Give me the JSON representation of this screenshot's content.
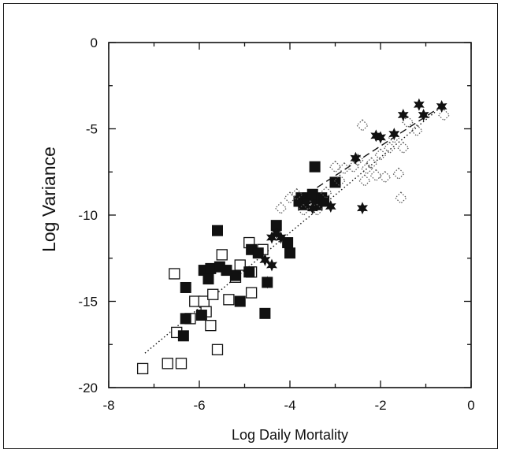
{
  "chart_data": {
    "type": "scatter",
    "xlabel": "Log Daily Mortality",
    "ylabel": "Log Variance",
    "xlim": [
      -8,
      0
    ],
    "ylim": [
      -20,
      0
    ],
    "x_ticks": [
      -8,
      -6,
      -4,
      -2,
      0
    ],
    "y_ticks": [
      0,
      -5,
      -10,
      -15,
      -20
    ],
    "x_tick_labels": [
      "-8",
      "-6",
      "-4",
      "-2",
      "0"
    ],
    "y_tick_labels": [
      "0",
      "-5",
      "-10",
      "-15",
      "-20"
    ],
    "grid": false,
    "legend": "none",
    "series": [
      {
        "marker": "open-square",
        "color": "#111111",
        "points": [
          [
            -7.25,
            -18.9
          ],
          [
            -6.7,
            -18.6
          ],
          [
            -6.4,
            -18.6
          ],
          [
            -6.5,
            -16.8
          ],
          [
            -6.55,
            -13.4
          ],
          [
            -6.2,
            -16.0
          ],
          [
            -6.1,
            -15.0
          ],
          [
            -5.9,
            -15.0
          ],
          [
            -5.85,
            -15.6
          ],
          [
            -5.75,
            -16.4
          ],
          [
            -5.7,
            -14.6
          ],
          [
            -5.6,
            -17.8
          ],
          [
            -5.5,
            -12.3
          ],
          [
            -5.35,
            -14.9
          ],
          [
            -5.2,
            -13.6
          ],
          [
            -5.1,
            -12.9
          ],
          [
            -4.9,
            -11.6
          ],
          [
            -4.85,
            -13.3
          ],
          [
            -4.85,
            -14.5
          ],
          [
            -4.6,
            -12.0
          ]
        ]
      },
      {
        "marker": "filled-square",
        "color": "#111111",
        "points": [
          [
            -6.35,
            -17.0
          ],
          [
            -6.3,
            -14.2
          ],
          [
            -6.3,
            -16.0
          ],
          [
            -5.95,
            -15.8
          ],
          [
            -5.9,
            -13.2
          ],
          [
            -5.8,
            -13.7
          ],
          [
            -5.75,
            -13.1
          ],
          [
            -5.6,
            -10.9
          ],
          [
            -5.55,
            -13.0
          ],
          [
            -5.4,
            -13.2
          ],
          [
            -5.2,
            -13.5
          ],
          [
            -5.1,
            -15.0
          ],
          [
            -4.9,
            -13.3
          ],
          [
            -4.85,
            -12.0
          ],
          [
            -4.7,
            -12.2
          ],
          [
            -4.55,
            -15.7
          ],
          [
            -4.5,
            -13.9
          ],
          [
            -4.3,
            -10.6
          ],
          [
            -4.05,
            -11.6
          ],
          [
            -4.0,
            -12.2
          ],
          [
            -3.75,
            -9.0
          ],
          [
            -3.7,
            -9.4
          ],
          [
            -3.6,
            -9.0
          ],
          [
            -3.5,
            -8.8
          ],
          [
            -3.45,
            -7.2
          ],
          [
            -3.4,
            -9.4
          ],
          [
            -3.3,
            -9.0
          ],
          [
            -3.25,
            -9.2
          ],
          [
            -3.0,
            -8.1
          ],
          [
            -3.8,
            -9.2
          ]
        ]
      },
      {
        "marker": "dotted-diamond",
        "color": "#555555",
        "points": [
          [
            -4.2,
            -9.6
          ],
          [
            -4.0,
            -9.0
          ],
          [
            -3.85,
            -8.8
          ],
          [
            -3.7,
            -9.7
          ],
          [
            -3.55,
            -9.5
          ],
          [
            -3.4,
            -9.7
          ],
          [
            -3.2,
            -8.7
          ],
          [
            -3.0,
            -7.2
          ],
          [
            -2.9,
            -8.0
          ],
          [
            -2.8,
            -7.3
          ],
          [
            -2.6,
            -7.2
          ],
          [
            -2.5,
            -6.8
          ],
          [
            -2.4,
            -4.8
          ],
          [
            -2.3,
            -7.3
          ],
          [
            -2.2,
            -7.0
          ],
          [
            -2.0,
            -6.5
          ],
          [
            -1.9,
            -7.8
          ],
          [
            -1.8,
            -6.1
          ],
          [
            -1.7,
            -5.5
          ],
          [
            -1.6,
            -7.6
          ],
          [
            -1.55,
            -9.0
          ],
          [
            -1.5,
            -6.1
          ],
          [
            -1.4,
            -4.6
          ],
          [
            -1.2,
            -5.1
          ],
          [
            -0.6,
            -4.2
          ],
          [
            -2.35,
            -8.0
          ],
          [
            -2.1,
            -7.7
          ]
        ]
      },
      {
        "marker": "star",
        "color": "#111111",
        "points": [
          [
            -4.55,
            -12.6
          ],
          [
            -4.5,
            -13.9
          ],
          [
            -4.4,
            -12.9
          ],
          [
            -4.3,
            -11.0
          ],
          [
            -4.2,
            -11.3
          ],
          [
            -4.4,
            -11.3
          ],
          [
            -3.65,
            -9.2
          ],
          [
            -3.5,
            -9.6
          ],
          [
            -2.55,
            -6.7
          ],
          [
            -2.4,
            -9.6
          ],
          [
            -2.1,
            -5.4
          ],
          [
            -2.0,
            -5.5
          ],
          [
            -1.7,
            -5.3
          ],
          [
            -1.5,
            -4.2
          ],
          [
            -1.15,
            -3.6
          ],
          [
            -1.05,
            -4.2
          ],
          [
            -0.65,
            -3.7
          ],
          [
            -3.1,
            -9.5
          ]
        ]
      }
    ],
    "fit_lines": [
      {
        "style": "dotted",
        "from": [
          -7.2,
          -18.0
        ],
        "to": [
          -0.6,
          -3.6
        ]
      },
      {
        "style": "dashed",
        "from": [
          -3.4,
          -8.4
        ],
        "to": [
          -0.6,
          -3.6
        ]
      }
    ]
  }
}
